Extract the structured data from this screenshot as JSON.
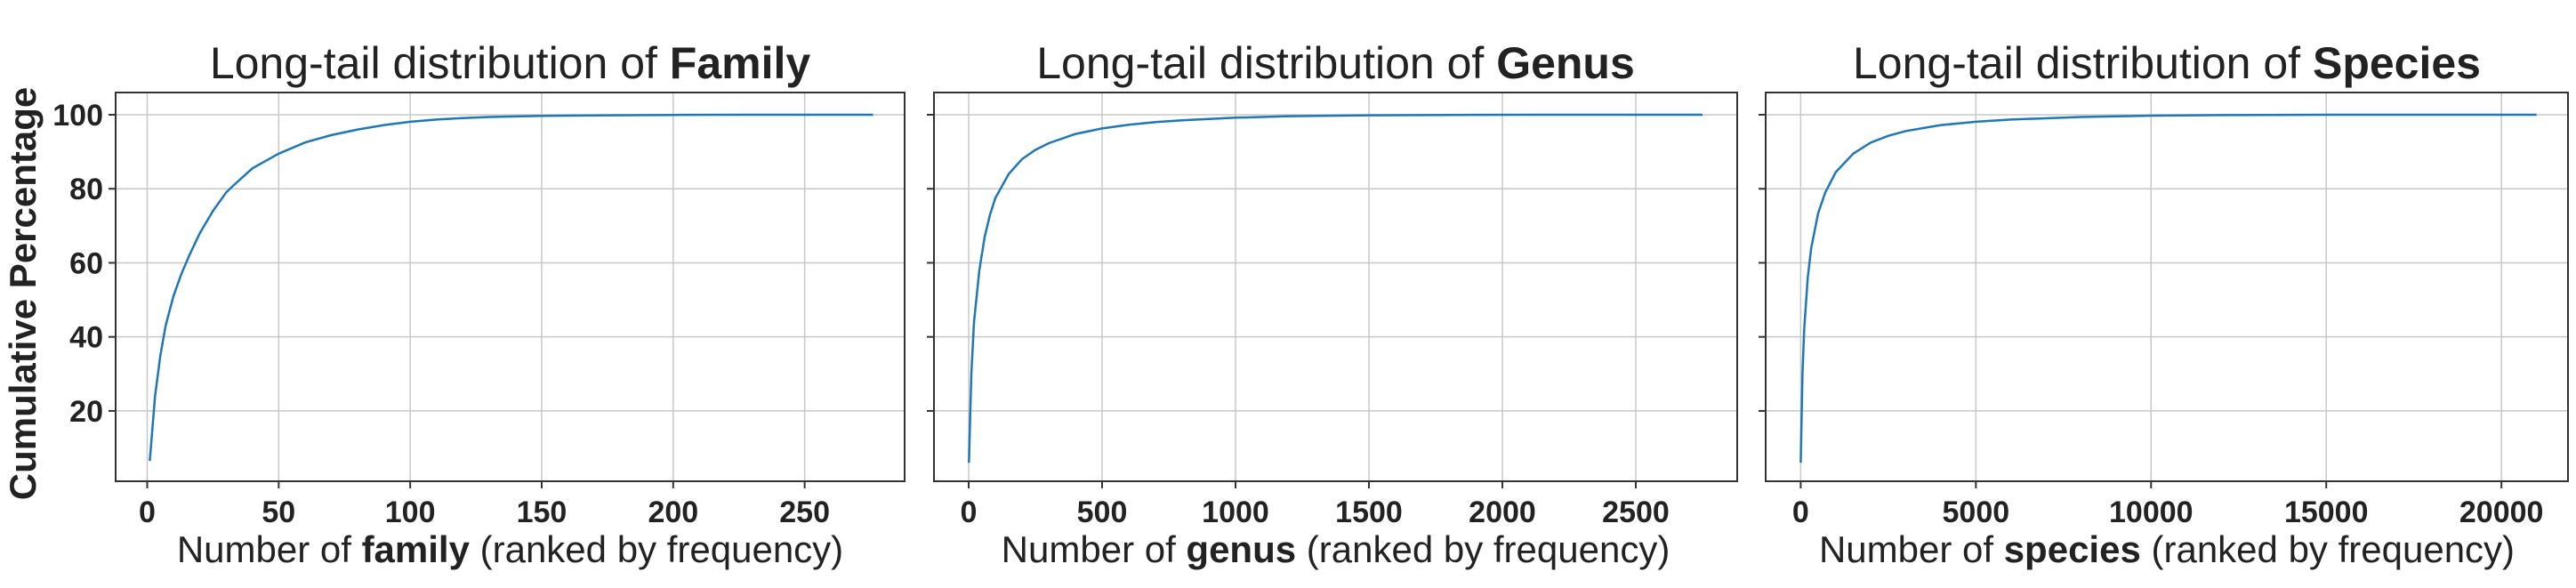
{
  "figure": {
    "ylabel": "Cumulative Percentage"
  },
  "chart_data": [
    {
      "type": "line",
      "title_prefix": "Long-tail distribution of ",
      "title_bold": "Family",
      "xlabel_prefix": "Number of ",
      "xlabel_bold": "family",
      "xlabel_suffix": " (ranked by frequency)",
      "ylabel": "Cumulative Percentage",
      "xlim": [
        -12,
        288
      ],
      "ylim": [
        1,
        106
      ],
      "xticks": [
        0,
        50,
        100,
        150,
        200,
        250
      ],
      "yticks": [
        20,
        40,
        60,
        80,
        100
      ],
      "show_yticklabels": true,
      "grid": true,
      "series": [
        {
          "color": "#1f77b4",
          "x": [
            1,
            3,
            5,
            7,
            10,
            13,
            16,
            20,
            25,
            30,
            33,
            40,
            50,
            60,
            70,
            80,
            90,
            100,
            110,
            120,
            130,
            150,
            175,
            200,
            225,
            250,
            276
          ],
          "y": [
            6.5,
            24,
            35,
            43,
            51,
            57,
            62,
            68,
            74,
            79,
            81,
            85.5,
            89.5,
            92.5,
            94.5,
            96,
            97.2,
            98.1,
            98.7,
            99.1,
            99.4,
            99.7,
            99.85,
            99.95,
            100,
            100,
            100
          ]
        }
      ]
    },
    {
      "type": "line",
      "title_prefix": "Long-tail distribution of ",
      "title_bold": "Genus",
      "xlabel_prefix": "Number of ",
      "xlabel_bold": "genus",
      "xlabel_suffix": " (ranked by frequency)",
      "xlim": [
        -130,
        2880
      ],
      "ylim": [
        1,
        106
      ],
      "xticks": [
        0,
        500,
        1000,
        1500,
        2000,
        2500
      ],
      "yticks": [
        20,
        40,
        60,
        80,
        100
      ],
      "show_yticklabels": false,
      "grid": true,
      "series": [
        {
          "color": "#1f77b4",
          "x": [
            1,
            10,
            20,
            40,
            60,
            80,
            100,
            150,
            200,
            250,
            300,
            400,
            500,
            600,
            700,
            800,
            1000,
            1200,
            1500,
            1800,
            2100,
            2400,
            2750
          ],
          "y": [
            6,
            30,
            44,
            58,
            67,
            73,
            77.5,
            84,
            88,
            90.5,
            92.3,
            94.8,
            96.3,
            97.3,
            98,
            98.5,
            99.2,
            99.6,
            99.85,
            99.95,
            100,
            100,
            100
          ]
        }
      ]
    },
    {
      "type": "line",
      "title_prefix": "Long-tail distribution of ",
      "title_bold": "Species",
      "xlabel_prefix": "Number of ",
      "xlabel_bold": "species",
      "xlabel_suffix": " (ranked by frequency)",
      "xlim": [
        -1000,
        21900
      ],
      "ylim": [
        1,
        106
      ],
      "xticks": [
        0,
        5000,
        10000,
        15000,
        20000
      ],
      "yticks": [
        20,
        40,
        60,
        80,
        100
      ],
      "show_yticklabels": false,
      "grid": true,
      "series": [
        {
          "color": "#1f77b4",
          "x": [
            1,
            50,
            100,
            200,
            300,
            500,
            700,
            1000,
            1500,
            2000,
            2500,
            3000,
            4000,
            5000,
            6000,
            8000,
            10000,
            12000,
            15000,
            18000,
            21000
          ],
          "y": [
            6,
            30,
            42,
            56,
            64,
            73.5,
            79,
            84.5,
            89.5,
            92.5,
            94.3,
            95.6,
            97.2,
            98.1,
            98.7,
            99.4,
            99.75,
            99.9,
            100,
            100,
            100
          ]
        }
      ]
    }
  ]
}
